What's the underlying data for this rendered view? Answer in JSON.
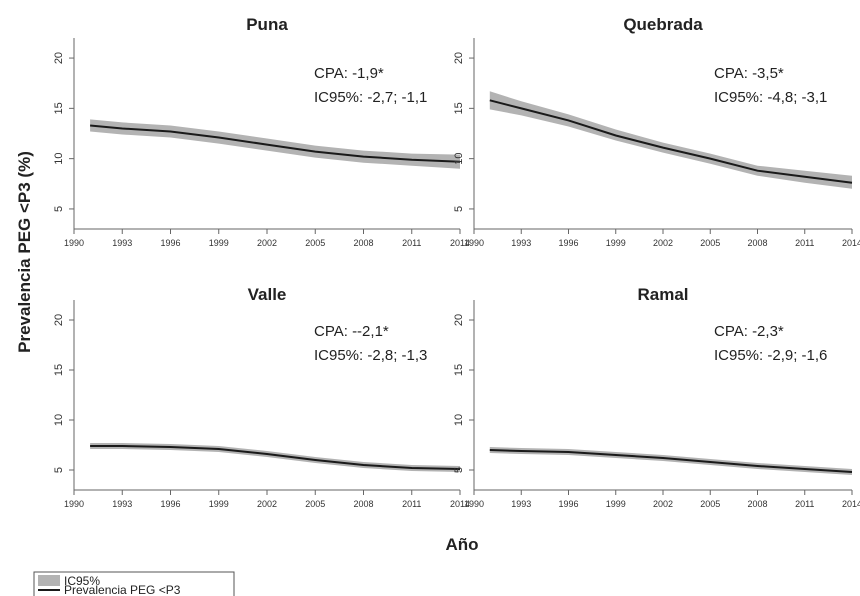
{
  "figure": {
    "ylabel": "Prevalencia PEG <P3 (%)",
    "xlabel": "Año",
    "legend": {
      "band_label": "IC95%",
      "line_label": "Prevalencia PEG <P3",
      "band_color": "#b3b3b3",
      "line_color": "#1a1a1a",
      "position": "bottom-left"
    }
  },
  "chart_data": [
    {
      "type": "line",
      "title": "Puna",
      "annotation": [
        "CPA: -1,9*",
        "IC95%: -2,7; -1,1"
      ],
      "xlim": [
        1990,
        2014
      ],
      "ylim": [
        4,
        21
      ],
      "xticks": [
        "1990",
        "1993",
        "1996",
        "1999",
        "2002",
        "2005",
        "2008",
        "2011",
        "2014"
      ],
      "yticks": [
        "5",
        "10",
        "15",
        "20"
      ],
      "x": [
        1991,
        1993,
        1996,
        1999,
        2002,
        2005,
        2008,
        2011,
        2014
      ],
      "series": [
        {
          "name": "Prevalencia PEG <P3",
          "values": [
            13.3,
            13.0,
            12.7,
            12.1,
            11.4,
            10.7,
            10.2,
            9.9,
            9.7
          ]
        },
        {
          "name": "IC95%",
          "lower": [
            12.7,
            12.4,
            12.1,
            11.5,
            10.8,
            10.1,
            9.6,
            9.3,
            9.0
          ],
          "upper": [
            13.9,
            13.6,
            13.3,
            12.7,
            12.0,
            11.3,
            10.8,
            10.5,
            10.4
          ]
        }
      ]
    },
    {
      "type": "line",
      "title": "Quebrada",
      "annotation": [
        "CPA: -3,5*",
        "IC95%: -4,8; -3,1"
      ],
      "xlim": [
        1990,
        2014
      ],
      "ylim": [
        4,
        21
      ],
      "xticks": [
        "1990",
        "1993",
        "1996",
        "1999",
        "2002",
        "2005",
        "2008",
        "2011",
        "2014"
      ],
      "yticks": [
        "5",
        "10",
        "15",
        "20"
      ],
      "x": [
        1991,
        1993,
        1996,
        1999,
        2002,
        2005,
        2008,
        2011,
        2014
      ],
      "series": [
        {
          "name": "Prevalencia PEG <P3",
          "values": [
            15.8,
            15.0,
            13.8,
            12.3,
            11.1,
            10.0,
            8.8,
            8.2,
            7.6
          ]
        },
        {
          "name": "IC95%",
          "lower": [
            14.9,
            14.3,
            13.2,
            11.8,
            10.6,
            9.5,
            8.3,
            7.6,
            7.0
          ],
          "upper": [
            16.7,
            15.7,
            14.4,
            12.9,
            11.6,
            10.5,
            9.3,
            8.8,
            8.3
          ]
        }
      ]
    },
    {
      "type": "line",
      "title": "Valle",
      "annotation": [
        "CPA: --2,1*",
        "IC95%: -2,8; -1,3"
      ],
      "xlim": [
        1990,
        2014
      ],
      "ylim": [
        4,
        21
      ],
      "xticks": [
        "1990",
        "1993",
        "1996",
        "1999",
        "2002",
        "2005",
        "2008",
        "2011",
        "2014"
      ],
      "yticks": [
        "5",
        "10",
        "15",
        "20"
      ],
      "x": [
        1991,
        1993,
        1996,
        1999,
        2002,
        2005,
        2008,
        2011,
        2014
      ],
      "series": [
        {
          "name": "Prevalencia PEG <P3",
          "values": [
            7.4,
            7.4,
            7.3,
            7.1,
            6.6,
            6.0,
            5.5,
            5.2,
            5.1
          ]
        },
        {
          "name": "IC95%",
          "lower": [
            7.1,
            7.1,
            7.0,
            6.8,
            6.3,
            5.7,
            5.2,
            4.9,
            4.8
          ],
          "upper": [
            7.7,
            7.7,
            7.6,
            7.4,
            6.9,
            6.3,
            5.8,
            5.5,
            5.4
          ]
        }
      ]
    },
    {
      "type": "line",
      "title": "Ramal",
      "annotation": [
        "CPA: -2,3*",
        "IC95%: -2,9; -1,6"
      ],
      "xlim": [
        1990,
        2014
      ],
      "ylim": [
        4,
        21
      ],
      "xticks": [
        "1990",
        "1993",
        "1996",
        "1999",
        "2002",
        "2005",
        "2008",
        "2011",
        "2014"
      ],
      "yticks": [
        "5",
        "10",
        "15",
        "20"
      ],
      "x": [
        1991,
        1993,
        1996,
        1999,
        2002,
        2005,
        2008,
        2011,
        2014
      ],
      "series": [
        {
          "name": "Prevalencia PEG <P3",
          "values": [
            7.0,
            6.9,
            6.8,
            6.5,
            6.2,
            5.8,
            5.4,
            5.1,
            4.8
          ]
        },
        {
          "name": "IC95%",
          "lower": [
            6.7,
            6.6,
            6.5,
            6.2,
            5.9,
            5.5,
            5.1,
            4.8,
            4.5
          ],
          "upper": [
            7.3,
            7.2,
            7.1,
            6.8,
            6.5,
            6.1,
            5.7,
            5.4,
            5.1
          ]
        }
      ]
    }
  ]
}
